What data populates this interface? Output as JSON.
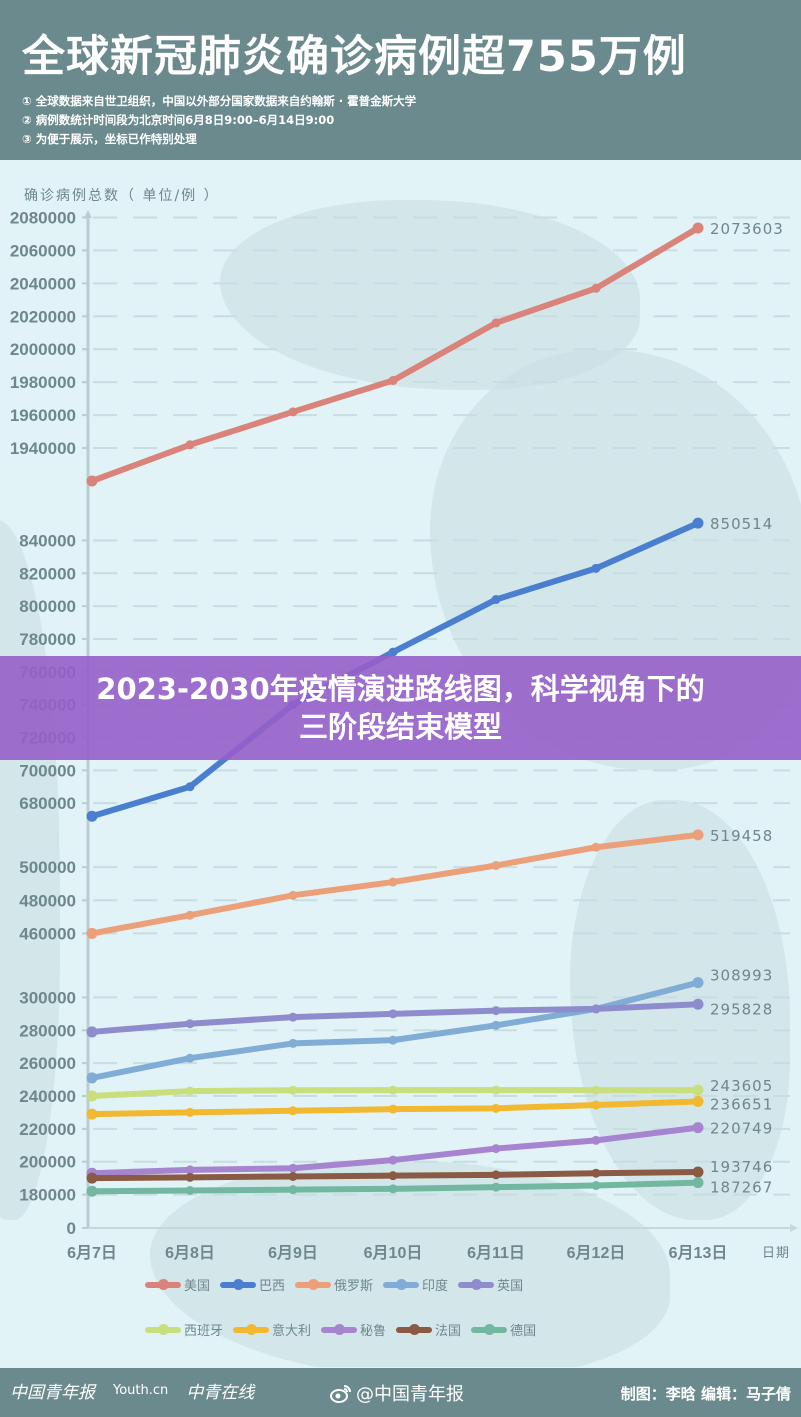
{
  "header": {
    "title": "全球新冠肺炎确诊病例超755万例",
    "notes": [
      "① 全球数据来自世卫组织，中国以外部分国家数据来自约翰斯 · 霍普金斯大学",
      "② 病例数统计时间段为北京时间6月8日9:00–6月14日9:00",
      "③ 为便于展示，坐标已作特别处理"
    ]
  },
  "banner": {
    "line1": "2023-2030年疫情演进路线图，科学视角下的",
    "line2": "三阶段结束模型"
  },
  "footer": {
    "logos": [
      "中国青年报",
      "Youth.cn",
      "中青在线"
    ],
    "weibo": "@中国青年报",
    "credits": "制图：李晗  编辑：马子倩"
  },
  "chart_data": {
    "type": "line",
    "title": "全球新冠肺炎确诊病例超755万例",
    "ylabel": "确诊病例总数（单位/例）",
    "xlabel": "日期",
    "categories": [
      "6月7日",
      "6月8日",
      "6月9日",
      "6月10日",
      "6月11日",
      "6月12日",
      "6月13日"
    ],
    "y_ticks": [
      2080000,
      2060000,
      2040000,
      2020000,
      2000000,
      1980000,
      1960000,
      1940000,
      840000,
      820000,
      800000,
      780000,
      760000,
      740000,
      720000,
      700000,
      680000,
      500000,
      480000,
      460000,
      300000,
      280000,
      260000,
      240000,
      220000,
      200000,
      180000,
      0
    ],
    "axis_note": "broken y-axis (coordinates specially processed)",
    "grid": true,
    "legend_position": "bottom",
    "series": [
      {
        "name": "美国",
        "color": "#d9837a",
        "values": [
          1920000,
          1942000,
          1962000,
          1981000,
          2016000,
          2037000,
          2073603
        ]
      },
      {
        "name": "巴西",
        "color": "#4a7fcf",
        "values": [
          672000,
          690000,
          740000,
          772000,
          804000,
          823000,
          850514
        ]
      },
      {
        "name": "俄罗斯",
        "color": "#eba07a",
        "values": [
          460000,
          471000,
          483000,
          491000,
          501000,
          512000,
          519458
        ]
      },
      {
        "name": "印度",
        "color": "#80acd6",
        "values": [
          251000,
          263000,
          272000,
          274000,
          283000,
          293000,
          308993
        ]
      },
      {
        "name": "英国",
        "color": "#8e8ccc",
        "values": [
          279000,
          284000,
          288000,
          290000,
          292000,
          293000,
          295828
        ]
      },
      {
        "name": "西班牙",
        "color": "#c9de7c",
        "values": [
          240000,
          243000,
          243500,
          243600,
          243600,
          243600,
          243605
        ]
      },
      {
        "name": "意大利",
        "color": "#f2b830",
        "values": [
          229000,
          230000,
          231000,
          232000,
          232500,
          234500,
          236651
        ]
      },
      {
        "name": "秘鲁",
        "color": "#a784cf",
        "values": [
          193000,
          195000,
          196000,
          201000,
          208000,
          213000,
          220749
        ]
      },
      {
        "name": "法国",
        "color": "#8a5a44",
        "values": [
          190000,
          190500,
          191000,
          191500,
          192000,
          193000,
          193746
        ]
      },
      {
        "name": "德国",
        "color": "#72b8a0",
        "values": [
          182000,
          182500,
          183000,
          183500,
          184500,
          185500,
          187267
        ]
      }
    ],
    "end_labels": [
      "2073603",
      "850514",
      "519458",
      "308993",
      "295828",
      "243605",
      "236651",
      "220749",
      "193746",
      "187267"
    ]
  }
}
